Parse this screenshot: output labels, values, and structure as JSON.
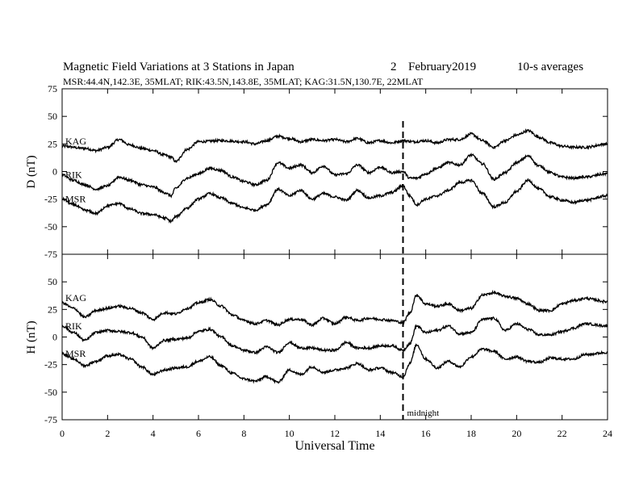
{
  "header": {
    "title": "Magnetic Field Variations at 3 Stations in Japan",
    "date_day": "2",
    "date_month_year": "February2019",
    "averaging": "10-s averages",
    "stations_line": "MSR:44.4N,142.3E, 35MLAT;  RIK:43.5N,143.8E, 35MLAT;  KAG:31.5N,130.7E, 22MLAT"
  },
  "chart_data": {
    "type": "line",
    "xlabel": "Universal Time",
    "xlim": [
      0,
      24
    ],
    "xticks": [
      0,
      2,
      4,
      6,
      8,
      10,
      12,
      14,
      16,
      18,
      20,
      22,
      24
    ],
    "marker": {
      "x": 15,
      "label": "midnight",
      "style": "dashed"
    },
    "panels": [
      {
        "ylabel": "D (nT)",
        "ylim": [
          -75,
          75
        ],
        "yticks": [
          75,
          50,
          25,
          0,
          -25,
          -50,
          -75
        ],
        "series": [
          {
            "name": "KAG",
            "x": [
              0,
              1,
              1.5,
              2,
              2.5,
              3,
              3.5,
              4,
              4.5,
              4.8,
              5,
              5.5,
              6,
              7,
              8,
              8.5,
              9,
              9.5,
              10,
              10.5,
              11,
              11.5,
              12,
              12.5,
              13,
              13.5,
              14,
              14.5,
              15,
              15.5,
              16,
              16.5,
              17,
              17.5,
              18,
              18.5,
              19,
              19.5,
              20,
              20.5,
              21,
              21.5,
              22,
              22.5,
              23,
              24
            ],
            "y": [
              23,
              21,
              19,
              22,
              29,
              24,
              21,
              19,
              15,
              13,
              9,
              20,
              27,
              28,
              27,
              25,
              28,
              32,
              30,
              27,
              29,
              28,
              29,
              27,
              30,
              26,
              28,
              26,
              28,
              27,
              28,
              26,
              29,
              29,
              34,
              28,
              22,
              28,
              33,
              37,
              31,
              26,
              23,
              22,
              22,
              25
            ]
          },
          {
            "name": "RIK",
            "x": [
              0,
              0.5,
              1,
              1.5,
              2,
              2.5,
              3,
              3.5,
              4,
              4.5,
              4.8,
              5,
              5.5,
              6,
              6.5,
              7,
              7.5,
              8,
              8.5,
              9,
              9.5,
              10,
              10.5,
              11,
              11.5,
              12,
              12.5,
              13,
              13.5,
              14,
              14.5,
              15,
              15.3,
              15.6,
              16,
              16.5,
              17,
              17.5,
              18,
              18.5,
              19,
              19.5,
              20,
              20.5,
              21,
              21.5,
              22,
              22.5,
              23,
              24
            ],
            "y": [
              -3,
              -8,
              -12,
              -16,
              -13,
              -5,
              -8,
              -12,
              -14,
              -19,
              -22,
              -15,
              -6,
              -2,
              3,
              1,
              -5,
              -9,
              -12,
              -8,
              8,
              3,
              6,
              -1,
              5,
              -3,
              -2,
              6,
              -1,
              4,
              -1,
              0,
              -6,
              -6,
              -2,
              3,
              8,
              6,
              15,
              7,
              -7,
              -1,
              8,
              14,
              5,
              -1,
              -5,
              -6,
              -5,
              -2
            ]
          },
          {
            "name": "MSR",
            "x": [
              0,
              0.5,
              1,
              1.5,
              2,
              2.5,
              3,
              3.5,
              4,
              4.5,
              4.8,
              5,
              5.5,
              6,
              6.5,
              7,
              7.5,
              8,
              8.5,
              9,
              9.5,
              10,
              10.5,
              11,
              11.5,
              12,
              12.5,
              13,
              13.5,
              14,
              14.5,
              15,
              15.3,
              15.6,
              16,
              16.5,
              17,
              17.5,
              18,
              18.5,
              19,
              19.5,
              20,
              20.5,
              21,
              21.5,
              22,
              22.5,
              23,
              24
            ],
            "y": [
              -25,
              -30,
              -35,
              -38,
              -31,
              -29,
              -34,
              -38,
              -39,
              -42,
              -45,
              -41,
              -33,
              -25,
              -20,
              -24,
              -29,
              -33,
              -35,
              -30,
              -16,
              -22,
              -17,
              -25,
              -20,
              -23,
              -26,
              -17,
              -24,
              -22,
              -19,
              -13,
              -22,
              -30,
              -25,
              -22,
              -17,
              -10,
              -8,
              -20,
              -32,
              -28,
              -18,
              -8,
              -16,
              -23,
              -26,
              -28,
              -26,
              -22
            ]
          }
        ]
      },
      {
        "ylabel": "H (nT)",
        "ylim": [
          -75,
          75
        ],
        "yticks": [
          75,
          50,
          25,
          0,
          -25,
          -50,
          -75
        ],
        "series": [
          {
            "name": "KAG",
            "x": [
              0,
              0.5,
              1,
              1.5,
              2,
              2.5,
              3,
              3.5,
              4,
              4.5,
              5,
              5.5,
              6,
              6.5,
              7,
              7.5,
              8,
              8.5,
              9,
              9.5,
              10,
              10.5,
              11,
              11.5,
              12,
              12.5,
              13,
              13.5,
              14,
              14.5,
              15,
              15.3,
              15.6,
              16,
              16.5,
              17,
              17.5,
              18,
              18.5,
              19,
              19.5,
              20,
              20.5,
              21,
              21.5,
              22,
              22.5,
              23,
              24
            ],
            "y": [
              31,
              26,
              18,
              24,
              26,
              28,
              26,
              22,
              16,
              22,
              21,
              26,
              31,
              34,
              28,
              20,
              15,
              12,
              15,
              11,
              16,
              16,
              11,
              17,
              12,
              18,
              15,
              17,
              16,
              15,
              13,
              22,
              38,
              30,
              28,
              30,
              24,
              26,
              38,
              40,
              37,
              35,
              30,
              24,
              24,
              30,
              33,
              35,
              32
            ]
          },
          {
            "name": "RIK",
            "x": [
              0,
              0.5,
              1,
              1.5,
              2,
              2.5,
              3,
              3.5,
              4,
              4.5,
              5,
              5.5,
              6,
              6.5,
              7,
              7.5,
              8,
              8.5,
              9,
              9.5,
              10,
              10.5,
              11,
              11.5,
              12,
              12.5,
              13,
              13.5,
              14,
              14.5,
              15,
              15.3,
              15.6,
              16,
              16.5,
              17,
              17.5,
              18,
              18.5,
              19,
              19.5,
              20,
              20.5,
              21,
              21.5,
              22,
              22.5,
              23,
              24
            ],
            "y": [
              10,
              4,
              -3,
              4,
              6,
              5,
              4,
              0,
              -10,
              -3,
              -2,
              -1,
              5,
              7,
              0,
              -8,
              -12,
              -14,
              -9,
              -14,
              -5,
              -10,
              -10,
              -12,
              -12,
              -5,
              -10,
              -10,
              -8,
              -8,
              -12,
              -6,
              10,
              4,
              6,
              10,
              3,
              4,
              16,
              17,
              6,
              12,
              7,
              2,
              2,
              5,
              8,
              12,
              10
            ]
          },
          {
            "name": "MSR",
            "x": [
              0,
              0.5,
              1,
              1.5,
              2,
              2.5,
              3,
              3.5,
              4,
              4.5,
              5,
              5.5,
              6,
              6.5,
              7,
              7.5,
              8,
              8.5,
              9,
              9.5,
              10,
              10.5,
              11,
              11.5,
              12,
              12.5,
              13,
              13.5,
              14,
              14.5,
              15,
              15.3,
              15.6,
              16,
              16.5,
              17,
              17.5,
              18,
              18.5,
              19,
              19.5,
              20,
              20.5,
              21,
              21.5,
              22,
              22.5,
              23,
              24
            ],
            "y": [
              -15,
              -20,
              -26,
              -22,
              -17,
              -16,
              -20,
              -27,
              -34,
              -30,
              -28,
              -27,
              -22,
              -18,
              -26,
              -33,
              -38,
              -40,
              -36,
              -41,
              -30,
              -34,
              -27,
              -32,
              -30,
              -28,
              -24,
              -30,
              -28,
              -32,
              -36,
              -24,
              -7,
              -20,
              -28,
              -22,
              -27,
              -18,
              -11,
              -13,
              -20,
              -18,
              -22,
              -23,
              -19,
              -20,
              -20,
              -16,
              -14
            ]
          }
        ]
      }
    ]
  }
}
